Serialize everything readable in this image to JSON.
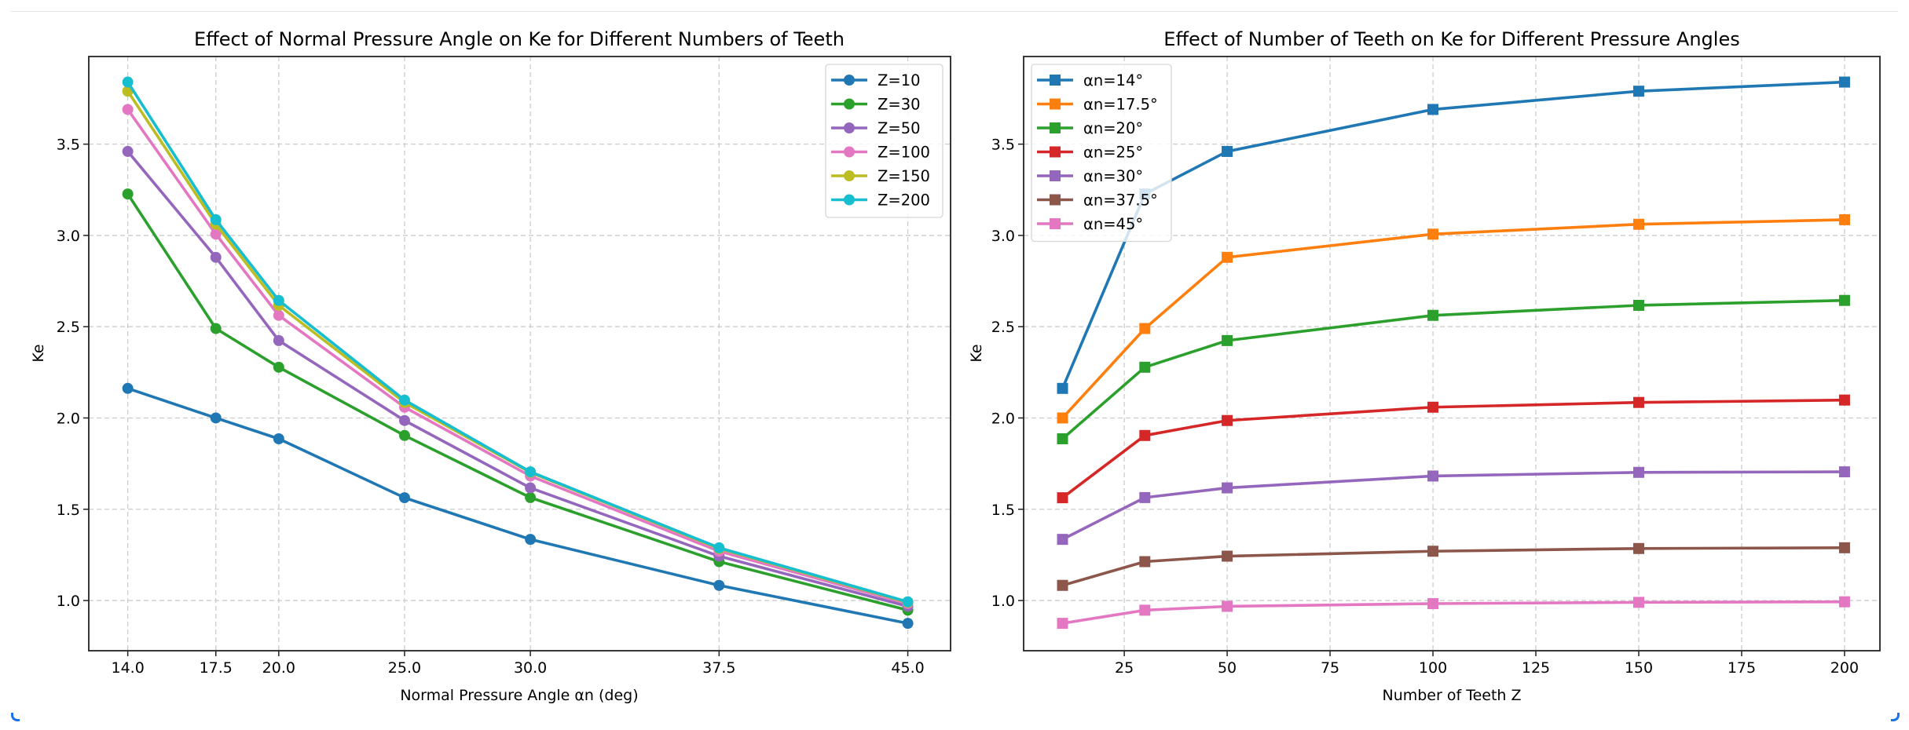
{
  "chart_data": [
    {
      "type": "line",
      "title": "Effect of Normal Pressure Angle on Ke for Different Numbers of Teeth",
      "xlabel": "Normal Pressure Angle αn (deg)",
      "ylabel": "Ke",
      "x": [
        14.0,
        17.5,
        20.0,
        25.0,
        30.0,
        37.5,
        45.0
      ],
      "xticks": [
        "14.0",
        "17.5",
        "20.0",
        "25.0",
        "30.0",
        "37.5",
        "45.0"
      ],
      "yticks": [
        "1.0",
        "1.5",
        "2.0",
        "2.5",
        "3.0",
        "3.5"
      ],
      "xlim": [
        12.45,
        46.7
      ],
      "ylim": [
        0.725,
        3.98
      ],
      "grid": true,
      "marker": "circle",
      "legend_position": "top-right",
      "series": [
        {
          "name": "Z=10",
          "color": "#1f77b4",
          "values": [
            2.162,
            2.0,
            1.886,
            1.563,
            1.335,
            1.083,
            0.875
          ]
        },
        {
          "name": "Z=30",
          "color": "#2ca02c",
          "values": [
            3.227,
            2.49,
            2.278,
            1.904,
            1.564,
            1.213,
            0.947
          ]
        },
        {
          "name": "Z=50",
          "color": "#9467bd",
          "values": [
            3.46,
            2.88,
            2.424,
            1.986,
            1.617,
            1.243,
            0.968
          ]
        },
        {
          "name": "Z=100",
          "color": "#e377c2",
          "values": [
            3.69,
            3.007,
            2.562,
            2.059,
            1.682,
            1.27,
            0.983
          ]
        },
        {
          "name": "Z=150",
          "color": "#bcbd22",
          "values": [
            3.79,
            3.061,
            2.617,
            2.085,
            1.702,
            1.285,
            0.99
          ]
        },
        {
          "name": "Z=200",
          "color": "#17becf",
          "values": [
            3.84,
            3.086,
            2.644,
            2.098,
            1.705,
            1.289,
            0.993
          ]
        }
      ]
    },
    {
      "type": "line",
      "title": "Effect of Number of Teeth on Ke for Different Pressure Angles",
      "xlabel": "Number of Teeth Z",
      "ylabel": "Ke",
      "x": [
        10,
        30,
        50,
        100,
        150,
        200
      ],
      "xticks": [
        "25",
        "50",
        "75",
        "100",
        "125",
        "150",
        "175",
        "200"
      ],
      "xtick_values": [
        25,
        50,
        75,
        100,
        125,
        150,
        175,
        200
      ],
      "yticks": [
        "1.0",
        "1.5",
        "2.0",
        "2.5",
        "3.0",
        "3.5"
      ],
      "xlim": [
        0.55,
        208.6
      ],
      "ylim": [
        0.725,
        3.98
      ],
      "grid": true,
      "marker": "square",
      "legend_position": "top-left",
      "series": [
        {
          "name": "αn=14°",
          "color": "#1f77b4",
          "values": [
            2.162,
            3.227,
            3.46,
            3.69,
            3.79,
            3.84
          ]
        },
        {
          "name": "αn=17.5°",
          "color": "#ff7f0e",
          "values": [
            2.0,
            2.49,
            2.88,
            3.007,
            3.061,
            3.086
          ]
        },
        {
          "name": "αn=20°",
          "color": "#2ca02c",
          "values": [
            1.886,
            2.278,
            2.424,
            2.562,
            2.617,
            2.644
          ]
        },
        {
          "name": "αn=25°",
          "color": "#d62728",
          "values": [
            1.563,
            1.904,
            1.986,
            2.059,
            2.085,
            2.098
          ]
        },
        {
          "name": "αn=30°",
          "color": "#9467bd",
          "values": [
            1.335,
            1.564,
            1.617,
            1.682,
            1.702,
            1.705
          ]
        },
        {
          "name": "αn=37.5°",
          "color": "#8c564b",
          "values": [
            1.083,
            1.213,
            1.243,
            1.27,
            1.285,
            1.289
          ]
        },
        {
          "name": "αn=45°",
          "color": "#e377c2",
          "values": [
            0.875,
            0.947,
            0.968,
            0.983,
            0.99,
            0.993
          ]
        }
      ]
    }
  ]
}
